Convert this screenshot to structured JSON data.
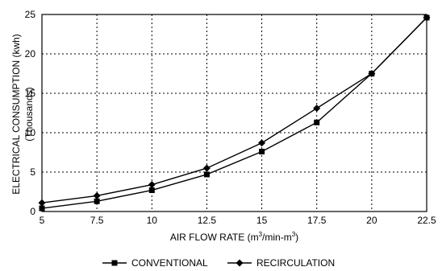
{
  "chart_data": {
    "type": "line",
    "title": "",
    "xlabel": "AIR FLOW RATE (m",
    "xlabel_sup1": "3",
    "xlabel_mid": "/min-m",
    "xlabel_sup2": "3",
    "xlabel_end": ")",
    "ylabel": "ELECTRICAL CONSUMPTION (kwh)",
    "ylabel2": "(Thousands)",
    "x": [
      5,
      7.5,
      10,
      12.5,
      15,
      17.5,
      20,
      22.5
    ],
    "x_tick_labels": [
      "5",
      "7.5",
      "10",
      "12.5",
      "15",
      "17.5",
      "20",
      "22.5"
    ],
    "y_tick_values": [
      0,
      5,
      10,
      15,
      20,
      25
    ],
    "y_tick_labels": [
      "0",
      "5",
      "10",
      "15",
      "20",
      "25"
    ],
    "xlim": [
      5,
      22.5
    ],
    "ylim": [
      0,
      25
    ],
    "grid": true,
    "legend_position": "bottom-center",
    "series": [
      {
        "name": "CONVENTIONAL",
        "marker": "square",
        "values": [
          0.4,
          1.3,
          2.7,
          4.7,
          7.6,
          11.3,
          17.5,
          24.6
        ]
      },
      {
        "name": "RECIRCULATION",
        "marker": "diamond",
        "values": [
          1.1,
          2.0,
          3.4,
          5.5,
          8.7,
          13.1,
          17.5,
          24.6
        ]
      }
    ]
  }
}
